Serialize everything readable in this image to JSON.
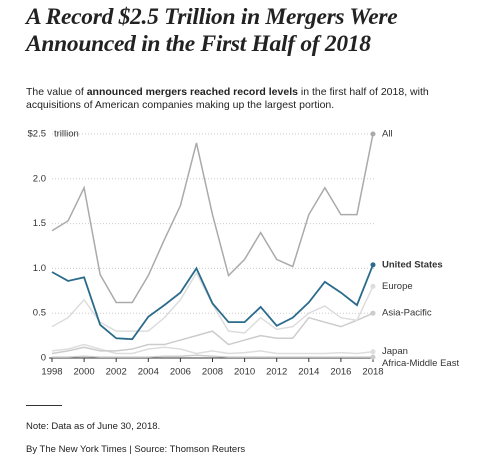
{
  "chart_data": {
    "type": "line",
    "title": [
      "A Record $2.5 Trillion in Mergers Were",
      "Announced in the First Half of 2018"
    ],
    "subtitle": [
      "The value of ",
      "announced mergers reached record levels",
      " in the first half of 2018, with acquisitions of American companies making up the largest portion."
    ],
    "y_unit": "trillion",
    "x": [
      1998,
      1999,
      2000,
      2001,
      2002,
      2003,
      2004,
      2005,
      2006,
      2007,
      2008,
      2009,
      2010,
      2011,
      2012,
      2013,
      2014,
      2015,
      2016,
      2017,
      2018
    ],
    "xlim": [
      1998,
      2018
    ],
    "xticks": [
      1998,
      2000,
      2002,
      2004,
      2006,
      2008,
      2010,
      2012,
      2014,
      2016,
      2018
    ],
    "ylim": [
      0,
      2.5
    ],
    "yticks": [
      0,
      0.5,
      {
        "value": 1,
        "label": "1.0"
      },
      1.5,
      {
        "value": 2,
        "label": "2.0"
      },
      {
        "value": 2.5,
        "label": "$2.5"
      }
    ],
    "grid": true,
    "series": [
      {
        "name": "Africa-Middle East",
        "color": "#cccccc",
        "values": [
          0.01,
          0.01,
          0.02,
          0.01,
          0.01,
          0.01,
          0.01,
          0.02,
          0.02,
          0.03,
          0.02,
          0.01,
          0.01,
          0.01,
          0.01,
          0.01,
          0.01,
          0.01,
          0.01,
          0.01,
          0.01
        ]
      },
      {
        "name": "Japan",
        "color": "#dddddd",
        "values": [
          0.08,
          0.1,
          0.15,
          0.1,
          0.05,
          0.05,
          0.1,
          0.12,
          0.1,
          0.05,
          0.08,
          0.05,
          0.06,
          0.08,
          0.05,
          0.05,
          0.05,
          0.05,
          0.06,
          0.05,
          0.07
        ]
      },
      {
        "name": "Asia-Pacific",
        "color": "#cccccc",
        "values": [
          0.05,
          0.08,
          0.12,
          0.08,
          0.08,
          0.1,
          0.15,
          0.15,
          0.2,
          0.25,
          0.3,
          0.15,
          0.2,
          0.25,
          0.22,
          0.22,
          0.45,
          0.4,
          0.35,
          0.42,
          0.5
        ]
      },
      {
        "name": "Europe",
        "color": "#dddddd",
        "values": [
          0.35,
          0.45,
          0.65,
          0.4,
          0.3,
          0.3,
          0.3,
          0.45,
          0.65,
          0.95,
          0.6,
          0.3,
          0.28,
          0.45,
          0.32,
          0.35,
          0.5,
          0.58,
          0.45,
          0.42,
          0.8
        ]
      },
      {
        "name": "All",
        "color": "#aaaaaa",
        "values": [
          1.42,
          1.53,
          1.9,
          0.93,
          0.62,
          0.62,
          0.92,
          1.32,
          1.7,
          2.4,
          1.6,
          0.92,
          1.1,
          1.4,
          1.1,
          1.02,
          1.6,
          1.9,
          1.6,
          1.6,
          2.5
        ]
      },
      {
        "name": "United States",
        "color": "#2b6b8c",
        "bold": true,
        "values": [
          0.96,
          0.86,
          0.9,
          0.37,
          0.22,
          0.21,
          0.46,
          0.59,
          0.73,
          1.0,
          0.61,
          0.4,
          0.4,
          0.57,
          0.36,
          0.45,
          0.62,
          0.85,
          0.73,
          0.59,
          1.04
        ]
      }
    ],
    "note": "Note: Data as of June 30, 2018.",
    "source": "By The New York Times | Source: Thomson Reuters"
  }
}
